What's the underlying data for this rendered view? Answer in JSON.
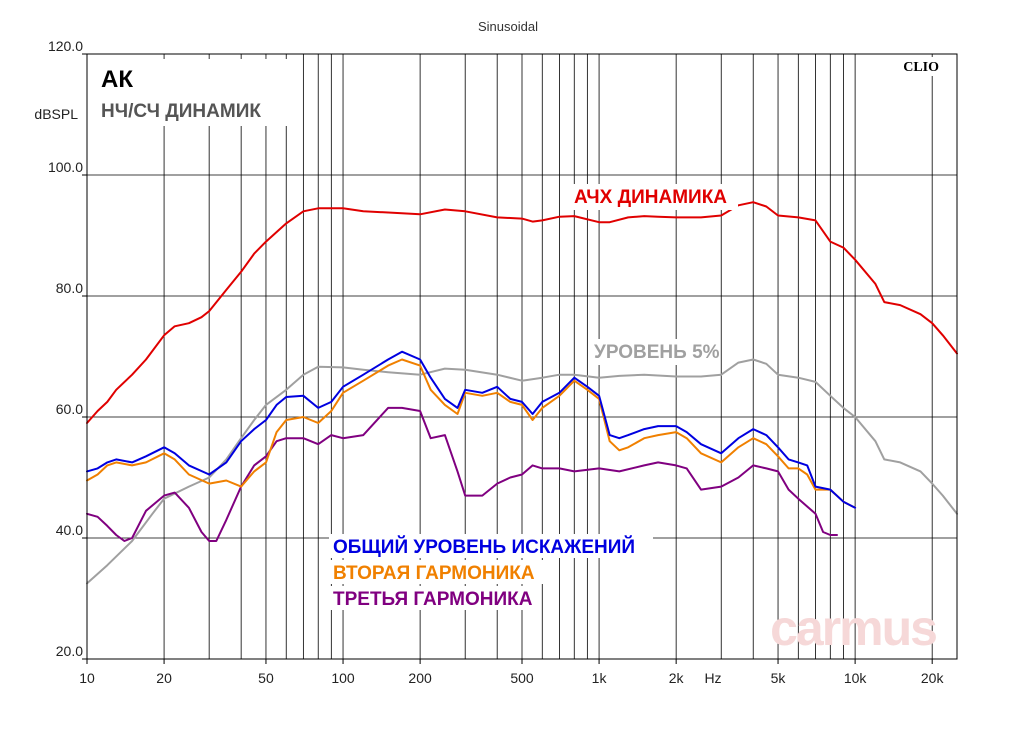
{
  "chart_data": {
    "type": "line",
    "title": "Sinusoidal",
    "ylabel": "dBSPL",
    "xlabel": "Hz",
    "x_scale": "log",
    "xlim": [
      10,
      25000
    ],
    "ylim": [
      20,
      120
    ],
    "grid": true,
    "y_ticks": [
      {
        "v": 20,
        "label": "20.0"
      },
      {
        "v": 40,
        "label": "40.0"
      },
      {
        "v": 60,
        "label": "60.0"
      },
      {
        "v": 80,
        "label": "80.0"
      },
      {
        "v": 100,
        "label": "100.0"
      },
      {
        "v": 120,
        "label": "120.0"
      }
    ],
    "x_ticks": [
      {
        "v": 10,
        "label": "10"
      },
      {
        "v": 20,
        "label": "20"
      },
      {
        "v": 50,
        "label": "50"
      },
      {
        "v": 100,
        "label": "100"
      },
      {
        "v": 200,
        "label": "200"
      },
      {
        "v": 500,
        "label": "500"
      },
      {
        "v": 1000,
        "label": "1k"
      },
      {
        "v": 2000,
        "label": "2k"
      },
      {
        "v": 5000,
        "label": "5k"
      },
      {
        "v": 10000,
        "label": "10k"
      },
      {
        "v": 20000,
        "label": "20k"
      }
    ],
    "headings": [
      "АК",
      "НЧ/СЧ ДИНАМИК"
    ],
    "brand": "CLIO",
    "watermark": "carmus",
    "series": [
      {
        "name": "АЧХ ДИНАМИКА",
        "color": "#e00000",
        "points": [
          [
            10,
            59
          ],
          [
            11,
            61
          ],
          [
            12,
            62.5
          ],
          [
            13,
            64.5
          ],
          [
            15,
            67
          ],
          [
            17,
            69.5
          ],
          [
            20,
            73.5
          ],
          [
            22,
            75
          ],
          [
            25,
            75.5
          ],
          [
            28,
            76.5
          ],
          [
            30,
            77.5
          ],
          [
            35,
            81
          ],
          [
            40,
            84
          ],
          [
            45,
            87
          ],
          [
            50,
            89
          ],
          [
            60,
            92
          ],
          [
            70,
            94
          ],
          [
            80,
            94.5
          ],
          [
            100,
            94.5
          ],
          [
            120,
            94
          ],
          [
            150,
            93.8
          ],
          [
            200,
            93.5
          ],
          [
            250,
            94.3
          ],
          [
            300,
            94
          ],
          [
            400,
            93
          ],
          [
            500,
            92.8
          ],
          [
            550,
            92.3
          ],
          [
            600,
            92.5
          ],
          [
            700,
            93.1
          ],
          [
            800,
            93.2
          ],
          [
            1000,
            92.2
          ],
          [
            1100,
            92.2
          ],
          [
            1300,
            93
          ],
          [
            1500,
            93.2
          ],
          [
            1700,
            93.1
          ],
          [
            2000,
            93
          ],
          [
            2500,
            93
          ],
          [
            3000,
            93.3
          ],
          [
            3500,
            95
          ],
          [
            4000,
            95.5
          ],
          [
            4500,
            94.8
          ],
          [
            5000,
            93.3
          ],
          [
            6000,
            93
          ],
          [
            7000,
            92.5
          ],
          [
            8000,
            89
          ],
          [
            9000,
            88
          ],
          [
            10000,
            86
          ],
          [
            12000,
            82
          ],
          [
            13000,
            79
          ],
          [
            15000,
            78.5
          ],
          [
            18000,
            77
          ],
          [
            20000,
            75.5
          ],
          [
            22000,
            73.5
          ],
          [
            25000,
            70.5
          ]
        ]
      },
      {
        "name": "УРОВЕНЬ 5%",
        "color": "#a0a0a0",
        "points": [
          [
            10,
            32.5
          ],
          [
            12,
            35.5
          ],
          [
            15,
            39.5
          ],
          [
            18,
            44
          ],
          [
            20,
            46.5
          ],
          [
            25,
            48.5
          ],
          [
            30,
            50
          ],
          [
            35,
            53
          ],
          [
            40,
            56.5
          ],
          [
            45,
            59.5
          ],
          [
            50,
            62
          ],
          [
            60,
            64.5
          ],
          [
            70,
            67
          ],
          [
            80,
            68.3
          ],
          [
            100,
            68.2
          ],
          [
            120,
            67.8
          ],
          [
            150,
            67.4
          ],
          [
            200,
            67
          ],
          [
            250,
            68
          ],
          [
            300,
            67.8
          ],
          [
            400,
            67
          ],
          [
            500,
            66
          ],
          [
            600,
            66.5
          ],
          [
            700,
            67
          ],
          [
            800,
            67
          ],
          [
            1000,
            66.5
          ],
          [
            1200,
            66.8
          ],
          [
            1500,
            67
          ],
          [
            2000,
            66.7
          ],
          [
            2500,
            66.7
          ],
          [
            3000,
            67
          ],
          [
            3500,
            69
          ],
          [
            4000,
            69.5
          ],
          [
            4500,
            68.8
          ],
          [
            5000,
            67
          ],
          [
            6000,
            66.5
          ],
          [
            7000,
            65.8
          ],
          [
            8000,
            63.5
          ],
          [
            9000,
            61.5
          ],
          [
            10000,
            60
          ],
          [
            12000,
            56
          ],
          [
            13000,
            53
          ],
          [
            15000,
            52.5
          ],
          [
            18000,
            51
          ],
          [
            20000,
            49
          ],
          [
            22000,
            47
          ],
          [
            25000,
            44
          ]
        ]
      },
      {
        "name": "ОБЩИЙ УРОВЕНЬ ИСКАЖЕНИЙ",
        "color": "#0000e0",
        "points": [
          [
            10,
            51
          ],
          [
            11,
            51.5
          ],
          [
            12,
            52.5
          ],
          [
            13,
            53
          ],
          [
            15,
            52.5
          ],
          [
            17,
            53.5
          ],
          [
            20,
            55
          ],
          [
            22,
            54
          ],
          [
            25,
            52
          ],
          [
            30,
            50.5
          ],
          [
            35,
            52.5
          ],
          [
            40,
            56
          ],
          [
            45,
            58
          ],
          [
            50,
            59.5
          ],
          [
            55,
            62
          ],
          [
            60,
            63.3
          ],
          [
            70,
            63.5
          ],
          [
            80,
            61.5
          ],
          [
            90,
            62.5
          ],
          [
            100,
            65
          ],
          [
            120,
            67
          ],
          [
            150,
            69.5
          ],
          [
            170,
            70.8
          ],
          [
            200,
            69.5
          ],
          [
            220,
            66.5
          ],
          [
            250,
            63
          ],
          [
            280,
            61.5
          ],
          [
            300,
            64.5
          ],
          [
            350,
            64
          ],
          [
            400,
            65
          ],
          [
            450,
            63
          ],
          [
            500,
            62.5
          ],
          [
            550,
            60.5
          ],
          [
            600,
            62.5
          ],
          [
            700,
            64
          ],
          [
            800,
            66.5
          ],
          [
            900,
            65
          ],
          [
            1000,
            63.5
          ],
          [
            1100,
            57
          ],
          [
            1200,
            56.5
          ],
          [
            1300,
            57
          ],
          [
            1500,
            58
          ],
          [
            1700,
            58.5
          ],
          [
            2000,
            58.5
          ],
          [
            2200,
            57.5
          ],
          [
            2500,
            55.5
          ],
          [
            3000,
            54
          ],
          [
            3500,
            56.5
          ],
          [
            4000,
            58
          ],
          [
            4500,
            57
          ],
          [
            5000,
            55
          ],
          [
            5500,
            53
          ],
          [
            6000,
            52.5
          ],
          [
            6500,
            52
          ],
          [
            7000,
            48.5
          ],
          [
            8000,
            48
          ],
          [
            9000,
            46
          ],
          [
            10000,
            45
          ]
        ]
      },
      {
        "name": "ВТОРАЯ ГАРМОНИКА",
        "color": "#f08000",
        "points": [
          [
            10,
            49.5
          ],
          [
            11,
            50.5
          ],
          [
            12,
            52
          ],
          [
            13,
            52.5
          ],
          [
            15,
            52
          ],
          [
            17,
            52.5
          ],
          [
            20,
            54
          ],
          [
            22,
            53
          ],
          [
            25,
            50.5
          ],
          [
            30,
            49
          ],
          [
            35,
            49.5
          ],
          [
            40,
            48.5
          ],
          [
            45,
            51
          ],
          [
            50,
            52.5
          ],
          [
            55,
            57.5
          ],
          [
            60,
            59.5
          ],
          [
            70,
            60
          ],
          [
            80,
            59
          ],
          [
            90,
            61
          ],
          [
            100,
            64
          ],
          [
            120,
            66
          ],
          [
            150,
            68.5
          ],
          [
            170,
            69.5
          ],
          [
            200,
            68.5
          ],
          [
            220,
            64.5
          ],
          [
            250,
            62
          ],
          [
            280,
            60.5
          ],
          [
            300,
            64
          ],
          [
            350,
            63.5
          ],
          [
            400,
            64
          ],
          [
            450,
            62.5
          ],
          [
            500,
            62
          ],
          [
            550,
            59.5
          ],
          [
            600,
            61.5
          ],
          [
            700,
            63.5
          ],
          [
            800,
            66
          ],
          [
            900,
            64.5
          ],
          [
            1000,
            63
          ],
          [
            1100,
            56
          ],
          [
            1200,
            54.5
          ],
          [
            1300,
            55
          ],
          [
            1500,
            56.5
          ],
          [
            1700,
            57
          ],
          [
            2000,
            57.5
          ],
          [
            2200,
            56.5
          ],
          [
            2500,
            54
          ],
          [
            3000,
            52.5
          ],
          [
            3500,
            55
          ],
          [
            4000,
            56.5
          ],
          [
            4500,
            55.5
          ],
          [
            5000,
            53.5
          ],
          [
            5500,
            51.5
          ],
          [
            6000,
            51.5
          ],
          [
            6500,
            50.5
          ],
          [
            7000,
            48
          ],
          [
            8000,
            48
          ],
          [
            9000,
            46
          ],
          [
            10000,
            45
          ]
        ]
      },
      {
        "name": "ТРЕТЬЯ ГАРМОНИКА",
        "color": "#800080",
        "points": [
          [
            10,
            44
          ],
          [
            11,
            43.5
          ],
          [
            12,
            42
          ],
          [
            13,
            40.5
          ],
          [
            14,
            39.5
          ],
          [
            15,
            40
          ],
          [
            17,
            44.5
          ],
          [
            20,
            47
          ],
          [
            22,
            47.5
          ],
          [
            25,
            45
          ],
          [
            28,
            41
          ],
          [
            30,
            39.5
          ],
          [
            32,
            39.5
          ],
          [
            35,
            43
          ],
          [
            40,
            48.5
          ],
          [
            45,
            52
          ],
          [
            50,
            53.5
          ],
          [
            55,
            56
          ],
          [
            60,
            56.5
          ],
          [
            70,
            56.5
          ],
          [
            80,
            55.5
          ],
          [
            90,
            57
          ],
          [
            100,
            56.5
          ],
          [
            120,
            57
          ],
          [
            150,
            61.5
          ],
          [
            170,
            61.5
          ],
          [
            200,
            61
          ],
          [
            220,
            56.5
          ],
          [
            250,
            57
          ],
          [
            280,
            51
          ],
          [
            300,
            47
          ],
          [
            350,
            47
          ],
          [
            400,
            49
          ],
          [
            450,
            50
          ],
          [
            500,
            50.5
          ],
          [
            550,
            52
          ],
          [
            600,
            51.5
          ],
          [
            700,
            51.5
          ],
          [
            800,
            51
          ],
          [
            1000,
            51.5
          ],
          [
            1200,
            51
          ],
          [
            1500,
            52
          ],
          [
            1700,
            52.5
          ],
          [
            2000,
            52
          ],
          [
            2200,
            51.5
          ],
          [
            2500,
            48
          ],
          [
            3000,
            48.5
          ],
          [
            3500,
            50
          ],
          [
            4000,
            52
          ],
          [
            4500,
            51.5
          ],
          [
            5000,
            51
          ],
          [
            5500,
            48
          ],
          [
            6000,
            46.5
          ],
          [
            7000,
            44
          ],
          [
            7500,
            41
          ],
          [
            8000,
            40.5
          ],
          [
            8500,
            40.5
          ]
        ]
      }
    ]
  }
}
